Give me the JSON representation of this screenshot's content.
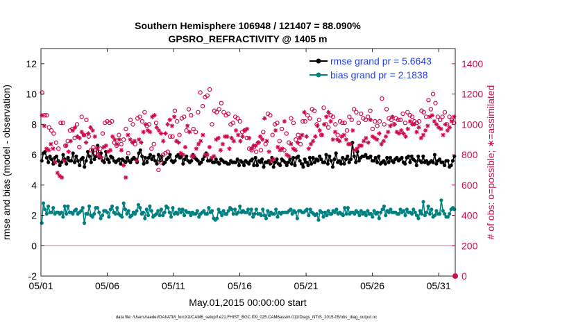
{
  "chart_data": {
    "type": "line",
    "title_line1": "Southern Hemisphere 106948 / 121407 = 88.090%",
    "title_line2": "GPSRO_REFRACTIVITY @ 1405 m",
    "xlabel": "May.01,2015 00:00:00 start",
    "ylabel_left": "rmse and bias (model - observation)",
    "ylabel_right": "# of obs: o=possible; ∗=assimilated",
    "footer": "data file: /Users/raeder/DAI/ATM_forcXX/CAM6_setup/f.e21.FHIST_BGC.f09_025.CAM6assim.011/Diags_NTrS_2015-05/obs_diag_output.nc",
    "x_ticks": [
      "05/01",
      "05/06",
      "05/11",
      "05/16",
      "05/21",
      "05/26",
      "05/31"
    ],
    "x_tick_days": [
      0,
      5,
      10,
      15,
      20,
      25,
      30
    ],
    "xlim_days": [
      0,
      31.25
    ],
    "ylim_left": [
      -2,
      13
    ],
    "y_ticks_left": [
      "-2",
      "0",
      "2",
      "4",
      "6",
      "8",
      "10",
      "12"
    ],
    "ylim_right": [
      0,
      1500
    ],
    "y_ticks_right": [
      "0",
      "200",
      "400",
      "600",
      "800",
      "1000",
      "1200",
      "1400"
    ],
    "series": [
      {
        "name": "rmse grand pr = 5.6643",
        "axis": "left",
        "color": "#000000",
        "marker": "filled-circle",
        "values": [
          5.6,
          6.1,
          6.2,
          5.8,
          5.5,
          5.9,
          5.7,
          5.4,
          5.8,
          5.9,
          5.6,
          5.3,
          5.5,
          6.0,
          5.7,
          5.4,
          5.8,
          5.6,
          5.6,
          6.1,
          5.5,
          5.9,
          5.6,
          5.3,
          5.7,
          5.8,
          5.2,
          5.6,
          6.2,
          5.9,
          5.5,
          6.3,
          5.7,
          5.9,
          6.6,
          5.8,
          6.1,
          5.6,
          5.5,
          6.2,
          5.7,
          5.5,
          5.9,
          5.8,
          5.6,
          5.5,
          5.6,
          5.7,
          5.4,
          5.7,
          5.6,
          5.5,
          5.8,
          5.6,
          5.5,
          5.7,
          5.8,
          5.7,
          5.5,
          6.1,
          6.3,
          5.9,
          5.4,
          5.8,
          5.5,
          5.8,
          6.0,
          5.7,
          5.9,
          5.6,
          5.4,
          6.0,
          5.6,
          5.9,
          5.4,
          5.5,
          5.7,
          5.8,
          6.0,
          5.6,
          5.5,
          5.6,
          5.9,
          6.0,
          5.8,
          5.9,
          5.4,
          5.7,
          5.9,
          5.6,
          5.5,
          5.6,
          6.0,
          5.8,
          5.7,
          5.6,
          5.4,
          5.5,
          5.7,
          5.9,
          6.1,
          5.6,
          5.6,
          5.7,
          5.5,
          5.5,
          5.7,
          5.5,
          5.4,
          5.7,
          5.6,
          5.5,
          5.5,
          5.4,
          5.4,
          5.6,
          5.5,
          5.5,
          5.5,
          5.7,
          5.3,
          5.6,
          5.5,
          5.3,
          5.6,
          5.5,
          5.4,
          5.6,
          5.7,
          5.3,
          5.8,
          5.3,
          5.6,
          5.5,
          5.7,
          5.2,
          5.5,
          5.5,
          5.6,
          5.4,
          5.8,
          5.2,
          5.5,
          5.7,
          5.4,
          5.3,
          5.7,
          5.6,
          5.5,
          5.3,
          5.5,
          5.7,
          5.4,
          5.8,
          5.3,
          5.8,
          5.9,
          5.6,
          5.4,
          5.2,
          5.7,
          5.5,
          5.3,
          5.8,
          5.4,
          5.8,
          5.5,
          5.7,
          5.6,
          5.9,
          5.7,
          5.5,
          5.5,
          6.0,
          5.4,
          5.9,
          5.6,
          5.2,
          5.7,
          6.1,
          5.5,
          5.6,
          5.4,
          5.8,
          5.4,
          5.7,
          5.9,
          5.5,
          5.7,
          6.8,
          5.9,
          5.5,
          6.2,
          5.6,
          5.8,
          5.9,
          5.9,
          6.0,
          5.8,
          5.8,
          5.9,
          5.6,
          5.6,
          5.8,
          5.5,
          5.9,
          5.4,
          5.5,
          5.6,
          5.4,
          5.8,
          5.5,
          5.8,
          5.6,
          5.5,
          5.7,
          5.8,
          5.6,
          5.7,
          5.8,
          5.5,
          5.4,
          5.8,
          5.9,
          5.5,
          5.9,
          5.7,
          5.6,
          5.3,
          5.9,
          5.6,
          5.5,
          5.9,
          5.5,
          5.6,
          5.4,
          5.5,
          5.6,
          5.5,
          6.0,
          5.4,
          5.6,
          5.7,
          5.5,
          5.5,
          5.3,
          5.6,
          5.6,
          5.2,
          5.3,
          5.6,
          5.9
        ]
      },
      {
        "name": "bias grand pr = 2.1838",
        "axis": "left",
        "color": "#008080",
        "marker": "filled-circle",
        "values": [
          1.5,
          2.8,
          2.4,
          2.1,
          2.6,
          2.2,
          2.2,
          2.5,
          2.1,
          2.2,
          2.2,
          2.1,
          2.2,
          1.9,
          2.6,
          2.1,
          2.6,
          2.2,
          2.2,
          2.1,
          2.3,
          2.4,
          2.1,
          2.2,
          2.3,
          2.5,
          1.5,
          2.1,
          2.1,
          2.6,
          2.0,
          1.9,
          2.1,
          2.5,
          2.5,
          2.2,
          1.8,
          2.0,
          2.3,
          2.3,
          2.2,
          1.9,
          2.4,
          2.6,
          2.2,
          2.1,
          2.5,
          2.1,
          2.0,
          1.9,
          2.8,
          2.4,
          2.1,
          2.3,
          1.9,
          2.0,
          2.2,
          2.1,
          2.3,
          2.7,
          2.5,
          2.1,
          2.2,
          1.8,
          2.4,
          2.0,
          2.6,
          2.3,
          1.9,
          2.0,
          2.1,
          2.3,
          2.0,
          2.4,
          2.0,
          2.2,
          2.6,
          2.5,
          2.2,
          1.9,
          2.5,
          2.1,
          2.2,
          2.1,
          2.4,
          2.2,
          2.4,
          2.0,
          2.3,
          2.2,
          2.2,
          2.0,
          2.2,
          2.1,
          2.1,
          2.3,
          1.9,
          2.1,
          2.2,
          2.3,
          2.1,
          2.1,
          2.5,
          2.2,
          2.3,
          1.8,
          1.7,
          1.8,
          2.4,
          2.2,
          2.0,
          2.3,
          2.1,
          2.1,
          2.3,
          2.5,
          2.4,
          2.1,
          2.4,
          2.1,
          2.2,
          2.6,
          2.2,
          2.3,
          2.2,
          2.2,
          2.4,
          2.1,
          2.4,
          1.9,
          2.1,
          2.4,
          2.1,
          2.1,
          2.0,
          2.4,
          2.0,
          1.8,
          2.3,
          2.0,
          2.2,
          2.1,
          2.1,
          2.4,
          1.9,
          2.2,
          2.1,
          2.2,
          2.2,
          2.2,
          2.2,
          2.3,
          2.4,
          2.1,
          2.3,
          2.2,
          1.8,
          2.3,
          2.3,
          2.2,
          2.2,
          2.3,
          2.4,
          2.0,
          2.4,
          2.2,
          2.1,
          2.0,
          2.1,
          1.7,
          2.3,
          2.2,
          1.9,
          2.2,
          2.0,
          2.3,
          2.1,
          2.1,
          2.3,
          2.2,
          2.4,
          2.1,
          2.2,
          2.1,
          2.0,
          2.5,
          2.1,
          2.5,
          2.1,
          2.2,
          2.2,
          2.1,
          2.3,
          2.2,
          2.0,
          2.3,
          2.1,
          2.2,
          2.0,
          2.3,
          2.1,
          2.1,
          1.9,
          2.3,
          2.1,
          2.2,
          1.8,
          2.2,
          2.4,
          2.6,
          2.0,
          2.3,
          2.2,
          2.4,
          2.2,
          2.2,
          2.2,
          2.1,
          2.1,
          2.4,
          2.2,
          2.3,
          2.0,
          2.4,
          2.2,
          2.2,
          2.1,
          2.4,
          2.2,
          2.0,
          1.8,
          2.3,
          2.1,
          2.9,
          2.0,
          2.2,
          2.6,
          2.1,
          2.4,
          1.9,
          2.0,
          2.3,
          2.1,
          2.1,
          3.0,
          2.3,
          2.1,
          1.9,
          1.9,
          2.1,
          2.4,
          2.5,
          2.4
        ]
      },
      {
        "name": "possible",
        "axis": "right",
        "color": "#cc0a4e",
        "marker": "open-circle",
        "values": [
          1210,
          1060,
          1060,
          980,
          960,
          940,
          880,
          840,
          1010,
          1010,
          860,
          890,
          960,
          970,
          910,
          1000,
          850,
          1050,
          930,
          1030,
          920,
          830,
          850,
          810,
          800,
          840,
          940,
          1010,
          1020,
          1010,
          1020,
          880,
          860,
          930,
          870,
          900,
          970,
          810,
          1030,
          1000,
          870,
          1040,
          1050,
          1020,
          1080,
          990,
          1000,
          840,
          870,
          1010,
          700,
          750,
          800,
          810,
          820,
          920,
          920,
          1090,
          1020,
          930,
          1040,
          1050,
          960,
          1100,
          1060,
          970,
          950,
          1080,
          1210,
          1120,
          1180,
          1190,
          1230,
          1000,
          1090,
          1080,
          1100,
          1140,
          1080,
          1060,
          1070,
          1000,
          1010,
          1050,
          1040,
          1020,
          950,
          960,
          910,
          840,
          830,
          850,
          820,
          880,
          830,
          950,
          870,
          1070,
          1060,
          930,
          1000,
          1010,
          890,
          970,
          830,
          940,
          880,
          1040,
          1010,
          900,
          930,
          870,
          1020,
          1020,
          1060,
          1040,
          1100,
          1090,
          1000,
          1030,
          930,
          1110,
          1000,
          980,
          1060,
          1050,
          1000,
          930,
          1020,
          1010,
          1010,
          960,
          1050,
          1030,
          1100,
          1080,
          1010,
          1070,
          1040,
          1030,
          1050,
          1090,
          970,
          1020,
          990,
          1020,
          1170,
          1000,
          1100,
          1040,
          1030,
          1000,
          1040,
          1030,
          1030,
          1070,
          1010,
          1080,
          1060,
          1050,
          1020,
          1010,
          1020,
          1090,
          1080,
          1050,
          1160,
          1100,
          1200,
          1140,
          1050,
          1030,
          1050,
          1080,
          1000,
          1050,
          1030,
          1010
        ]
      },
      {
        "name": "assimilated",
        "axis": "right",
        "color": "#cc0a4e",
        "marker": "asterisk",
        "values": [
          1060,
          990,
          840,
          830,
          870,
          840,
          750,
          680,
          660,
          650,
          760,
          860,
          820,
          890,
          960,
          980,
          920,
          910,
          950,
          930,
          880,
          940,
          980,
          960,
          920,
          840,
          790,
          780,
          850,
          860,
          820,
          830,
          920,
          900,
          870,
          900,
          830,
          730,
          650,
          930,
          900,
          880,
          890,
          760,
          900,
          880,
          950,
          1000,
          960,
          950,
          1050,
          1060,
          980,
          960,
          940,
          890,
          940,
          1000,
          1030,
          990,
          1050,
          890,
          880,
          810,
          800,
          850,
          990,
          950,
          790,
          790,
          840,
          870,
          890,
          930,
          800,
          800,
          850,
          780,
          790,
          900,
          910,
          830,
          870,
          920,
          920,
          840,
          910,
          890,
          960,
          930,
          890,
          920,
          960,
          970,
          910,
          840,
          860,
          860,
          880,
          920,
          900,
          1040,
          890,
          820,
          760,
          770,
          960,
          850,
          830,
          840,
          1020,
          800,
          790,
          870,
          840,
          830,
          880,
          910,
          930,
          1080,
          920,
          840,
          870,
          890,
          920,
          990,
          960,
          930,
          1000,
          1050,
          1080,
          1020,
          900,
          950,
          900,
          890,
          920,
          930,
          900,
          870,
          870,
          960,
          830,
          840,
          860,
          860,
          890,
          910,
          880,
          1030,
          920,
          910,
          900,
          940,
          870,
          890,
          920,
          950,
          990,
          1050,
          1000,
          950,
          940,
          960,
          940,
          920,
          970,
          1020,
          1000,
          1000,
          950,
          980,
          910,
          930,
          960,
          990,
          1050,
          1060,
          1020,
          1000,
          980,
          970,
          930,
          1000,
          960,
          980,
          1020,
          1050
        ]
      }
    ],
    "reference_line_left_y": 0,
    "right_axis_zero_marker_value": 0
  }
}
